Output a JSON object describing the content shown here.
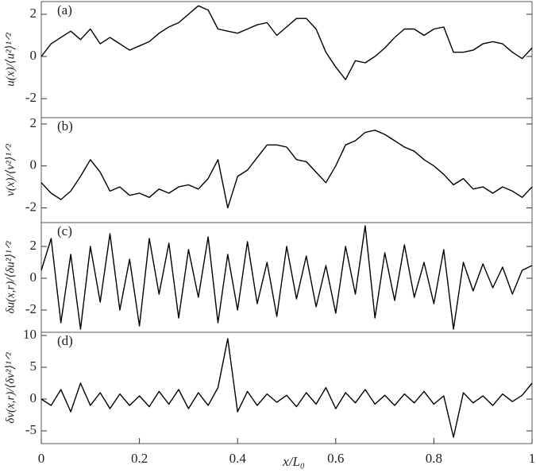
{
  "chart_data": [
    {
      "type": "line",
      "panel_label": "(a)",
      "ylabel": "u(x)/⟨u²⟩¹ᐟ²",
      "color": "#000000",
      "xlim": [
        0,
        1
      ],
      "ylim": [
        -2.9,
        2.6
      ],
      "yticks": [
        -2,
        0,
        2
      ],
      "x": [
        0,
        0.02,
        0.04,
        0.06,
        0.08,
        0.1,
        0.12,
        0.14,
        0.16,
        0.18,
        0.2,
        0.22,
        0.24,
        0.26,
        0.28,
        0.3,
        0.32,
        0.34,
        0.36,
        0.38,
        0.4,
        0.42,
        0.44,
        0.46,
        0.48,
        0.5,
        0.52,
        0.54,
        0.56,
        0.58,
        0.6,
        0.62,
        0.64,
        0.66,
        0.68,
        0.7,
        0.72,
        0.74,
        0.76,
        0.78,
        0.8,
        0.82,
        0.84,
        0.86,
        0.88,
        0.9,
        0.92,
        0.94,
        0.96,
        0.98,
        1
      ],
      "values": [
        0.0,
        0.6,
        0.9,
        1.2,
        0.8,
        1.3,
        0.6,
        0.9,
        0.6,
        0.3,
        0.5,
        0.7,
        1.1,
        1.4,
        1.6,
        2.0,
        2.4,
        2.2,
        1.3,
        1.2,
        1.1,
        1.3,
        1.5,
        1.6,
        1.0,
        1.4,
        1.8,
        1.8,
        1.3,
        0.2,
        -0.5,
        -1.1,
        -0.2,
        -0.3,
        0.0,
        0.4,
        0.9,
        1.3,
        1.3,
        1.0,
        1.3,
        1.4,
        0.2,
        0.2,
        0.3,
        0.6,
        0.7,
        0.6,
        0.2,
        -0.1,
        0.4
      ]
    },
    {
      "type": "line",
      "panel_label": "(b)",
      "ylabel": "v(x)/⟨v²⟩¹ᐟ²",
      "color": "#000000",
      "xlim": [
        0,
        1
      ],
      "ylim": [
        -2.7,
        2.3
      ],
      "yticks": [
        -2,
        0,
        2
      ],
      "x": [
        0,
        0.02,
        0.04,
        0.06,
        0.08,
        0.1,
        0.12,
        0.14,
        0.16,
        0.18,
        0.2,
        0.22,
        0.24,
        0.26,
        0.28,
        0.3,
        0.32,
        0.34,
        0.36,
        0.38,
        0.4,
        0.42,
        0.44,
        0.46,
        0.48,
        0.5,
        0.52,
        0.54,
        0.56,
        0.58,
        0.6,
        0.62,
        0.64,
        0.66,
        0.68,
        0.7,
        0.72,
        0.74,
        0.76,
        0.78,
        0.8,
        0.82,
        0.84,
        0.86,
        0.88,
        0.9,
        0.92,
        0.94,
        0.96,
        0.98,
        1
      ],
      "values": [
        -0.8,
        -1.3,
        -1.6,
        -1.2,
        -0.5,
        0.3,
        -0.3,
        -1.2,
        -1.0,
        -1.4,
        -1.3,
        -1.5,
        -1.1,
        -1.3,
        -1.0,
        -0.9,
        -1.1,
        -0.6,
        0.3,
        -2.0,
        -0.5,
        -0.2,
        0.4,
        1.0,
        1.0,
        0.9,
        0.3,
        0.2,
        -0.3,
        -0.8,
        0.0,
        1.0,
        1.2,
        1.6,
        1.7,
        1.5,
        1.2,
        0.9,
        0.7,
        0.3,
        0.0,
        -0.4,
        -0.9,
        -0.6,
        -1.1,
        -1.0,
        -1.3,
        -1.0,
        -1.2,
        -1.5,
        -1.0
      ]
    },
    {
      "type": "line",
      "panel_label": "(c)",
      "ylabel": "δu(x,r)/⟨δu²⟩¹ᐟ²",
      "color": "#000000",
      "xlim": [
        0,
        1
      ],
      "ylim": [
        -3.4,
        3.5
      ],
      "yticks": [
        -2,
        0,
        2
      ],
      "x": [
        0,
        0.02,
        0.04,
        0.06,
        0.08,
        0.1,
        0.12,
        0.14,
        0.16,
        0.18,
        0.2,
        0.22,
        0.24,
        0.26,
        0.28,
        0.3,
        0.32,
        0.34,
        0.36,
        0.38,
        0.4,
        0.42,
        0.44,
        0.46,
        0.48,
        0.5,
        0.52,
        0.54,
        0.56,
        0.58,
        0.6,
        0.62,
        0.64,
        0.66,
        0.68,
        0.7,
        0.72,
        0.74,
        0.76,
        0.78,
        0.8,
        0.82,
        0.84,
        0.86,
        0.88,
        0.9,
        0.92,
        0.94,
        0.96,
        0.98,
        1
      ],
      "values": [
        0.5,
        2.5,
        -2.8,
        1.5,
        -3.2,
        2.0,
        -1.5,
        2.8,
        -2.0,
        1.2,
        -3.0,
        2.5,
        -1.0,
        2.2,
        -2.5,
        1.8,
        -1.2,
        2.6,
        -2.8,
        1.5,
        -2.0,
        2.3,
        -1.6,
        1.0,
        -2.4,
        2.0,
        -1.3,
        1.4,
        -1.8,
        0.8,
        -2.2,
        2.0,
        -1.0,
        3.3,
        -2.5,
        1.6,
        -1.4,
        2.1,
        -1.2,
        1.0,
        -1.6,
        1.8,
        -3.2,
        1.0,
        -0.8,
        0.9,
        -0.6,
        0.7,
        -1.0,
        0.5,
        0.8
      ]
    },
    {
      "type": "line",
      "panel_label": "(d)",
      "ylabel": "δv(x,r)/⟨δv²⟩¹ᐟ²",
      "color": "#000000",
      "xlim": [
        0,
        1
      ],
      "ylim": [
        -7,
        10.5
      ],
      "yticks": [
        -5,
        0,
        5,
        10
      ],
      "xticks": [
        0,
        0.2,
        0.4,
        0.6,
        0.8,
        1
      ],
      "xlabel": "x/L₀",
      "x": [
        0,
        0.02,
        0.04,
        0.06,
        0.08,
        0.1,
        0.12,
        0.14,
        0.16,
        0.18,
        0.2,
        0.22,
        0.24,
        0.26,
        0.28,
        0.3,
        0.32,
        0.34,
        0.36,
        0.38,
        0.4,
        0.42,
        0.44,
        0.46,
        0.48,
        0.5,
        0.52,
        0.54,
        0.56,
        0.58,
        0.6,
        0.62,
        0.64,
        0.66,
        0.68,
        0.7,
        0.72,
        0.74,
        0.76,
        0.78,
        0.8,
        0.82,
        0.84,
        0.86,
        0.88,
        0.9,
        0.92,
        0.94,
        0.96,
        0.98,
        1
      ],
      "values": [
        0,
        -1,
        1.5,
        -2,
        2.5,
        -1,
        1,
        -1.5,
        0.8,
        -1,
        0.5,
        -1.2,
        1.2,
        -0.8,
        1.5,
        -1.5,
        1.0,
        -1.0,
        1.8,
        9.5,
        -2.0,
        1.2,
        -1.0,
        0.8,
        -0.5,
        0.6,
        -1.2,
        1.0,
        -0.8,
        1.8,
        -1.5,
        1.0,
        -0.6,
        1.5,
        -0.8,
        0.6,
        -1.0,
        0.8,
        -0.6,
        1.2,
        -0.8,
        0.5,
        -6.0,
        1.0,
        -0.6,
        0.5,
        -1.0,
        0.8,
        -0.4,
        0.6,
        2.5
      ]
    }
  ]
}
